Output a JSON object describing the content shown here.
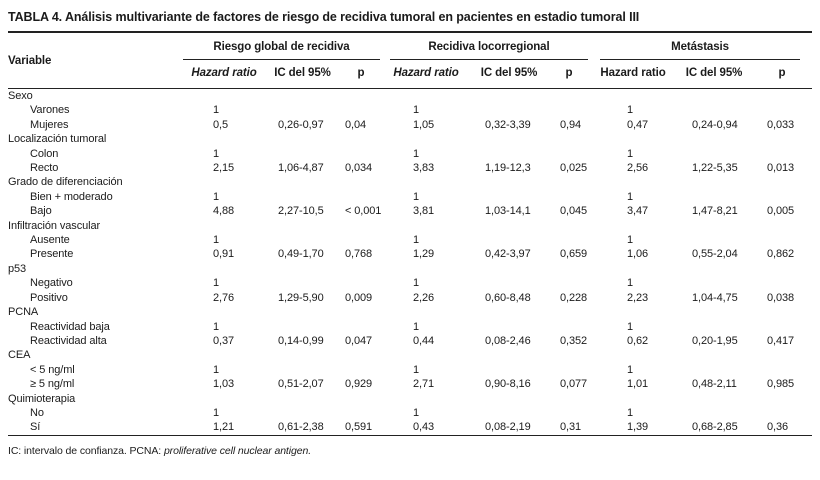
{
  "title": "TABLA 4. Análisis multivariante de factores de riesgo de recidiva tumoral en pacientes en estadio tumoral III",
  "table": {
    "variable_header": "Variable",
    "groups": [
      {
        "label": "Riesgo global de recidiva",
        "hazard_italic": true,
        "subs": [
          "Hazard ratio",
          "IC del 95%",
          "p"
        ]
      },
      {
        "label": "Recidiva locorregional",
        "hazard_italic": true,
        "subs": [
          "Hazard ratio",
          "IC del 95%",
          "p"
        ]
      },
      {
        "label": "Metástasis",
        "hazard_italic": false,
        "subs": [
          "Hazard ratio",
          "IC del 95%",
          "p"
        ]
      }
    ],
    "sections": [
      {
        "name": "Sexo",
        "rows": [
          {
            "label": "Varones",
            "cells": [
              "1",
              "",
              "",
              "1",
              "",
              "",
              "1",
              "",
              ""
            ]
          },
          {
            "label": "Mujeres",
            "cells": [
              "0,5",
              "0,26-0,97",
              "0,04",
              "1,05",
              "0,32-3,39",
              "0,94",
              "0,47",
              "0,24-0,94",
              "0,033"
            ]
          }
        ]
      },
      {
        "name": "Localización tumoral",
        "rows": [
          {
            "label": "Colon",
            "cells": [
              "1",
              "",
              "",
              "1",
              "",
              "",
              "1",
              "",
              ""
            ]
          },
          {
            "label": "Recto",
            "cells": [
              "2,15",
              "1,06-4,87",
              "0,034",
              "3,83",
              "1,19-12,3",
              "0,025",
              "2,56",
              "1,22-5,35",
              "0,013"
            ]
          }
        ]
      },
      {
        "name": "Grado de diferenciación",
        "rows": [
          {
            "label": "Bien + moderado",
            "cells": [
              "1",
              "",
              "",
              "1",
              "",
              "",
              "1",
              "",
              ""
            ]
          },
          {
            "label": "Bajo",
            "cells": [
              "4,88",
              "2,27-10,5",
              "< 0,001",
              "3,81",
              "1,03-14,1",
              "0,045",
              "3,47",
              "1,47-8,21",
              "0,005"
            ]
          }
        ]
      },
      {
        "name": "Infiltración vascular",
        "rows": [
          {
            "label": "Ausente",
            "cells": [
              "1",
              "",
              "",
              "1",
              "",
              "",
              "1",
              "",
              ""
            ]
          },
          {
            "label": "Presente",
            "cells": [
              "0,91",
              "0,49-1,70",
              "0,768",
              "1,29",
              "0,42-3,97",
              "0,659",
              "1,06",
              "0,55-2,04",
              "0,862"
            ]
          }
        ]
      },
      {
        "name": "p53",
        "rows": [
          {
            "label": "Negativo",
            "cells": [
              "1",
              "",
              "",
              "1",
              "",
              "",
              "1",
              "",
              ""
            ]
          },
          {
            "label": "Positivo",
            "cells": [
              "2,76",
              "1,29-5,90",
              "0,009",
              "2,26",
              "0,60-8,48",
              "0,228",
              "2,23",
              "1,04-4,75",
              "0,038"
            ]
          }
        ]
      },
      {
        "name": "PCNA",
        "rows": [
          {
            "label": "Reactividad baja",
            "cells": [
              "1",
              "",
              "",
              "1",
              "",
              "",
              "1",
              "",
              ""
            ]
          },
          {
            "label": "Reactividad alta",
            "cells": [
              "0,37",
              "0,14-0,99",
              "0,047",
              "0,44",
              "0,08-2,46",
              "0,352",
              "0,62",
              "0,20-1,95",
              "0,417"
            ]
          }
        ]
      },
      {
        "name": "CEA",
        "rows": [
          {
            "label": "< 5 ng/ml",
            "cells": [
              "1",
              "",
              "",
              "1",
              "",
              "",
              "1",
              "",
              ""
            ]
          },
          {
            "label": "≥ 5 ng/ml",
            "cells": [
              "1,03",
              "0,51-2,07",
              "0,929",
              "2,71",
              "0,90-8,16",
              "0,077",
              "1,01",
              "0,48-2,11",
              "0,985"
            ]
          }
        ]
      },
      {
        "name": "Quimioterapia",
        "rows": [
          {
            "label": "No",
            "cells": [
              "1",
              "",
              "",
              "1",
              "",
              "",
              "1",
              "",
              ""
            ]
          },
          {
            "label": "Sí",
            "cells": [
              "1,21",
              "0,61-2,38",
              "0,591",
              "0,43",
              "0,08-2,19",
              "0,31",
              "1,39",
              "0,68-2,85",
              "0,36"
            ]
          }
        ]
      }
    ]
  },
  "footnote": {
    "plain": "IC: intervalo de confianza. PCNA: ",
    "italic": "proliferative cell nuclear antigen."
  }
}
